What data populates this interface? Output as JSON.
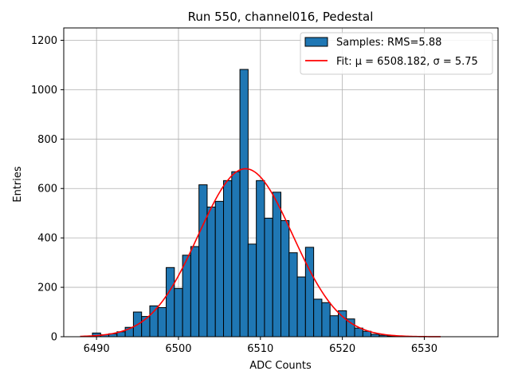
{
  "chart_data": {
    "type": "bar",
    "title": "Run 550, channel016, Pedestal",
    "xlabel": "ADC Counts",
    "ylabel": "Entries",
    "xlim": [
      6486,
      6539
    ],
    "ylim": [
      0,
      1250
    ],
    "xticks": [
      6490,
      6500,
      6510,
      6520,
      6530
    ],
    "yticks": [
      0,
      200,
      400,
      600,
      800,
      1000,
      1200
    ],
    "grid": true,
    "legend_position": "top-right",
    "histogram": {
      "name": "Samples: RMS=5.88",
      "bin_start": 6489.5,
      "bin_width": 1,
      "fill_color": "#1f77b4",
      "edge_color": "#000000",
      "values": [
        15,
        8,
        12,
        20,
        38,
        100,
        82,
        125,
        118,
        280,
        195,
        330,
        365,
        615,
        525,
        548,
        632,
        668,
        1082,
        375,
        632,
        480,
        585,
        470,
        340,
        242,
        362,
        152,
        138,
        85,
        105,
        72,
        35,
        22,
        10,
        6,
        3,
        1,
        1
      ]
    },
    "fit": {
      "name": "Fit: μ = 6508.182, σ = 5.75",
      "color": "#ff0000",
      "mu": 6508.182,
      "sigma": 5.75,
      "amplitude": 680,
      "x_range": [
        6488,
        6532
      ]
    }
  }
}
